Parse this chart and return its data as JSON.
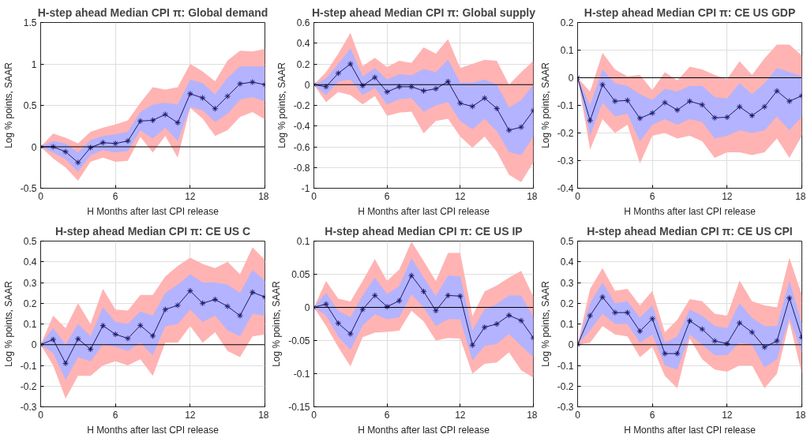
{
  "chart_data": [
    {
      "type": "line",
      "title": "H-step ahead Median CPI π: Global demand",
      "xlabel": "H Months after last CPI release",
      "ylabel": "Log % points, SAAR",
      "x": [
        0,
        1,
        2,
        3,
        4,
        5,
        6,
        7,
        8,
        9,
        10,
        11,
        12,
        13,
        14,
        15,
        16,
        17,
        18
      ],
      "xlim": [
        0,
        18
      ],
      "xticks": [
        0,
        6,
        12,
        18
      ],
      "ylim": [
        -0.5,
        1.5
      ],
      "yticks": [
        -0.5,
        0,
        0.5,
        1,
        1.5
      ],
      "grid": true,
      "marker": "cross",
      "ref_lines": [
        {
          "axis": "y",
          "value": 0,
          "color": "#000000"
        }
      ],
      "series": [
        {
          "color": "#ffb3b3",
          "values": [
            null,
            null,
            null,
            null,
            null,
            null,
            null,
            null,
            null,
            null,
            null,
            null,
            null,
            null,
            null,
            null,
            null,
            null,
            null
          ],
          "lower": [
            0,
            -0.14,
            -0.25,
            -0.41,
            -0.18,
            -0.13,
            -0.18,
            -0.17,
            0.12,
            -0.07,
            0.13,
            -0.13,
            0.47,
            0.34,
            0.13,
            0.2,
            0.36,
            0.42,
            0.33
          ],
          "upper": [
            0,
            0.16,
            0.11,
            0.04,
            0.18,
            0.23,
            0.27,
            0.32,
            0.53,
            0.72,
            0.69,
            0.72,
            1.0,
            0.91,
            0.79,
            1.04,
            1.16,
            1.15,
            1.18
          ]
        },
        {
          "color": "#b3b3ff",
          "values": [
            null,
            null,
            null,
            null,
            null,
            null,
            null,
            null,
            null,
            null,
            null,
            null,
            null,
            null,
            null,
            null,
            null,
            null,
            null
          ],
          "lower": [
            0,
            -0.07,
            -0.15,
            -0.3,
            -0.1,
            -0.04,
            -0.07,
            -0.05,
            0.2,
            0.1,
            0.23,
            0.07,
            0.48,
            0.44,
            0.3,
            0.4,
            0.57,
            0.6,
            0.55
          ],
          "upper": [
            0,
            0.07,
            0.04,
            -0.07,
            0.08,
            0.13,
            0.15,
            0.18,
            0.42,
            0.51,
            0.53,
            0.51,
            0.81,
            0.77,
            0.63,
            0.83,
            0.97,
            0.97,
            0.97
          ]
        },
        {
          "color": "#1a1a66",
          "values": [
            0,
            0,
            -0.06,
            -0.19,
            -0.01,
            0.05,
            0.04,
            0.07,
            0.31,
            0.32,
            0.39,
            0.29,
            0.64,
            0.59,
            0.46,
            0.61,
            0.76,
            0.78,
            0.75
          ]
        }
      ]
    },
    {
      "type": "line",
      "title": "H-step ahead Median CPI π: Global supply",
      "xlabel": "H Months after last CPI release",
      "ylabel": "Log % points, SAAR",
      "x": [
        0,
        1,
        2,
        3,
        4,
        5,
        6,
        7,
        8,
        9,
        10,
        11,
        12,
        13,
        14,
        15,
        16,
        17,
        18
      ],
      "xlim": [
        0,
        18
      ],
      "xticks": [
        0,
        6,
        12,
        18
      ],
      "ylim": [
        -1,
        0.6
      ],
      "yticks": [
        -1,
        -0.8,
        -0.6,
        -0.4,
        -0.2,
        0,
        0.2,
        0.4,
        0.6
      ],
      "grid": true,
      "marker": "cross",
      "ref_lines": [
        {
          "axis": "y",
          "value": 0,
          "color": "#000000"
        }
      ],
      "series": [
        {
          "color": "#ffb3b3",
          "values": [
            null,
            null,
            null,
            null,
            null,
            null,
            null,
            null,
            null,
            null,
            null,
            null,
            null,
            null,
            null,
            null,
            null,
            null,
            null
          ],
          "lower": [
            0,
            -0.17,
            -0.07,
            -0.1,
            -0.19,
            -0.11,
            -0.3,
            -0.27,
            -0.26,
            -0.47,
            -0.35,
            -0.33,
            -0.5,
            -0.61,
            -0.5,
            -0.65,
            -0.87,
            -0.94,
            -0.75
          ],
          "upper": [
            0,
            0.12,
            0.3,
            0.5,
            0.18,
            0.26,
            0.17,
            0.23,
            0.21,
            0.36,
            0.3,
            0.44,
            0.16,
            0.2,
            0.24,
            0.23,
            0.0,
            0.12,
            0.23
          ]
        },
        {
          "color": "#b3b3ff",
          "values": [
            null,
            null,
            null,
            null,
            null,
            null,
            null,
            null,
            null,
            null,
            null,
            null,
            null,
            null,
            null,
            null,
            null,
            null,
            null
          ],
          "lower": [
            0,
            -0.1,
            0.03,
            0.05,
            -0.1,
            -0.03,
            -0.19,
            -0.14,
            -0.13,
            -0.26,
            -0.2,
            -0.17,
            -0.35,
            -0.43,
            -0.33,
            -0.45,
            -0.65,
            -0.68,
            -0.5
          ],
          "upper": [
            0,
            0.06,
            0.2,
            0.35,
            0.08,
            0.16,
            0.05,
            0.1,
            0.09,
            0.15,
            0.12,
            0.24,
            0.02,
            0.02,
            0.05,
            0.0,
            -0.22,
            -0.15,
            0.0
          ]
        },
        {
          "color": "#1a1a66",
          "values": [
            0,
            -0.02,
            0.11,
            0.2,
            -0.01,
            0.07,
            -0.07,
            -0.02,
            -0.02,
            -0.06,
            -0.04,
            0.03,
            -0.18,
            -0.21,
            -0.13,
            -0.23,
            -0.44,
            -0.41,
            -0.25
          ]
        }
      ]
    },
    {
      "type": "line",
      "title": "H-step ahead Median CPI π: CE US GDP",
      "xlabel": "H Months after last CPI release",
      "ylabel": "Log % points, SAAR",
      "x": [
        0,
        1,
        2,
        3,
        4,
        5,
        6,
        7,
        8,
        9,
        10,
        11,
        12,
        13,
        14,
        15,
        16,
        17,
        18
      ],
      "xlim": [
        0,
        18
      ],
      "xticks": [
        0,
        6,
        12,
        18
      ],
      "ylim": [
        -0.4,
        0.2
      ],
      "yticks": [
        -0.4,
        -0.3,
        -0.2,
        -0.1,
        0,
        0.1,
        0.2
      ],
      "grid": true,
      "marker": "cross",
      "ref_lines": [
        {
          "axis": "y",
          "value": 0,
          "color": "#000000"
        }
      ],
      "series": [
        {
          "color": "#ffb3b3",
          "values": [
            null,
            null,
            null,
            null,
            null,
            null,
            null,
            null,
            null,
            null,
            null,
            null,
            null,
            null,
            null,
            null,
            null,
            null,
            null
          ],
          "lower": [
            0,
            -0.26,
            -0.15,
            -0.2,
            -0.17,
            -0.31,
            -0.21,
            -0.2,
            -0.22,
            -0.21,
            -0.23,
            -0.29,
            -0.27,
            -0.27,
            -0.28,
            -0.27,
            -0.22,
            -0.29,
            -0.21
          ],
          "upper": [
            0,
            -0.05,
            0.09,
            0.03,
            0.005,
            0.01,
            -0.045,
            0.02,
            -0.01,
            0.04,
            0.03,
            0.01,
            -0.005,
            0.06,
            0.01,
            0.07,
            0.12,
            0.12,
            0.08
          ]
        },
        {
          "color": "#b3b3ff",
          "values": [
            null,
            null,
            null,
            null,
            null,
            null,
            null,
            null,
            null,
            null,
            null,
            null,
            null,
            null,
            null,
            null,
            null,
            null,
            null
          ],
          "lower": [
            0,
            -0.21,
            -0.09,
            -0.14,
            -0.13,
            -0.23,
            -0.17,
            -0.15,
            -0.17,
            -0.15,
            -0.16,
            -0.22,
            -0.21,
            -0.19,
            -0.2,
            -0.19,
            -0.14,
            -0.19,
            -0.14
          ],
          "upper": [
            0,
            -0.1,
            0.03,
            -0.02,
            -0.03,
            -0.06,
            -0.08,
            -0.04,
            -0.05,
            -0.03,
            -0.03,
            -0.07,
            -0.075,
            -0.02,
            -0.06,
            -0.02,
            0.035,
            0.02,
            0.005
          ]
        },
        {
          "color": "#1a1a66",
          "values": [
            0,
            -0.155,
            -0.025,
            -0.085,
            -0.082,
            -0.147,
            -0.128,
            -0.09,
            -0.117,
            -0.085,
            -0.098,
            -0.145,
            -0.143,
            -0.105,
            -0.137,
            -0.105,
            -0.048,
            -0.085,
            -0.065
          ]
        }
      ]
    },
    {
      "type": "line",
      "title": "H-step ahead Median CPI π: CE US C",
      "xlabel": "H Months after last CPI release",
      "ylabel": "Log % points, SAAR",
      "x": [
        0,
        1,
        2,
        3,
        4,
        5,
        6,
        7,
        8,
        9,
        10,
        11,
        12,
        13,
        14,
        15,
        16,
        17,
        18
      ],
      "xlim": [
        0,
        18
      ],
      "xticks": [
        0,
        6,
        12,
        18
      ],
      "ylim": [
        -0.3,
        0.5
      ],
      "yticks": [
        -0.3,
        -0.2,
        -0.1,
        0,
        0.1,
        0.2,
        0.3,
        0.4,
        0.5
      ],
      "grid": true,
      "marker": "cross",
      "ref_lines": [
        {
          "axis": "y",
          "value": 0,
          "color": "#000000"
        }
      ],
      "series": [
        {
          "color": "#ffb3b3",
          "values": [
            null,
            null,
            null,
            null,
            null,
            null,
            null,
            null,
            null,
            null,
            null,
            null,
            null,
            null,
            null,
            null,
            null,
            null,
            null
          ],
          "lower": [
            0,
            -0.1,
            -0.26,
            -0.15,
            -0.15,
            -0.1,
            -0.08,
            -0.1,
            -0.07,
            -0.15,
            0.01,
            0.01,
            0.09,
            0.01,
            0.06,
            -0.03,
            -0.06,
            0.04,
            0.05
          ],
          "upper": [
            0,
            0.14,
            0.08,
            0.2,
            0.1,
            0.27,
            0.17,
            0.165,
            0.24,
            0.24,
            0.33,
            0.38,
            0.42,
            0.39,
            0.37,
            0.4,
            0.34,
            0.47,
            0.41
          ]
        },
        {
          "color": "#b3b3ff",
          "values": [
            null,
            null,
            null,
            null,
            null,
            null,
            null,
            null,
            null,
            null,
            null,
            null,
            null,
            null,
            null,
            null,
            null,
            null,
            null
          ],
          "lower": [
            0,
            -0.04,
            -0.17,
            -0.06,
            -0.08,
            0.0,
            -0.01,
            -0.03,
            0.01,
            -0.05,
            0.09,
            0.1,
            0.17,
            0.11,
            0.14,
            0.07,
            0.04,
            0.15,
            0.14
          ],
          "upper": [
            0,
            0.08,
            0.0,
            0.1,
            0.04,
            0.18,
            0.11,
            0.1,
            0.16,
            0.14,
            0.25,
            0.29,
            0.34,
            0.3,
            0.3,
            0.29,
            0.25,
            0.36,
            0.31
          ]
        },
        {
          "color": "#1a1a66",
          "values": [
            0,
            0.025,
            -0.09,
            0.028,
            -0.022,
            0.092,
            0.05,
            0.03,
            0.093,
            0.042,
            0.17,
            0.19,
            0.26,
            0.2,
            0.218,
            0.185,
            0.14,
            0.253,
            0.23
          ]
        }
      ]
    },
    {
      "type": "line",
      "title": "H-step ahead Median CPI π: CE US IP",
      "xlabel": "H Months after last CPI release",
      "ylabel": "Log % points, SAAR",
      "x": [
        0,
        1,
        2,
        3,
        4,
        5,
        6,
        7,
        8,
        9,
        10,
        11,
        12,
        13,
        14,
        15,
        16,
        17,
        18
      ],
      "xlim": [
        0,
        18
      ],
      "xticks": [
        0,
        6,
        12,
        18
      ],
      "ylim": [
        -0.15,
        0.1
      ],
      "yticks": [
        -0.15,
        -0.1,
        -0.05,
        0,
        0.05,
        0.1
      ],
      "grid": true,
      "marker": "cross",
      "ref_lines": [
        {
          "axis": "y",
          "value": 0,
          "color": "#000000"
        }
      ],
      "series": [
        {
          "color": "#ffb3b3",
          "values": [
            null,
            null,
            null,
            null,
            null,
            null,
            null,
            null,
            null,
            null,
            null,
            null,
            null,
            null,
            null,
            null,
            null,
            null,
            null
          ],
          "lower": [
            0,
            -0.028,
            -0.06,
            -0.089,
            -0.045,
            -0.038,
            -0.037,
            -0.035,
            -0.005,
            -0.021,
            -0.05,
            -0.046,
            -0.047,
            -0.1,
            -0.085,
            -0.083,
            -0.068,
            -0.095,
            -0.106
          ],
          "upper": [
            0,
            0.04,
            0.013,
            0.009,
            0.04,
            0.073,
            0.04,
            0.057,
            0.099,
            0.07,
            0.04,
            0.082,
            0.082,
            -0.013,
            0.024,
            0.033,
            0.045,
            0.055,
            0.016
          ]
        },
        {
          "color": "#b3b3ff",
          "values": [
            null,
            null,
            null,
            null,
            null,
            null,
            null,
            null,
            null,
            null,
            null,
            null,
            null,
            null,
            null,
            null,
            null,
            null,
            null
          ],
          "lower": [
            0,
            -0.012,
            -0.044,
            -0.064,
            -0.027,
            -0.01,
            -0.018,
            -0.015,
            0.02,
            0.0,
            -0.028,
            -0.018,
            -0.018,
            -0.08,
            -0.058,
            -0.055,
            -0.04,
            -0.058,
            -0.075
          ],
          "upper": [
            0,
            0.022,
            -0.005,
            -0.015,
            0.018,
            0.045,
            0.02,
            0.032,
            0.074,
            0.045,
            0.017,
            0.048,
            0.047,
            -0.035,
            -0.003,
            0.005,
            0.018,
            0.018,
            -0.015
          ]
        },
        {
          "color": "#1a1a66",
          "values": [
            0,
            0.005,
            -0.024,
            -0.04,
            -0.003,
            0.018,
            0.001,
            0.01,
            0.048,
            0.024,
            -0.005,
            0.018,
            0.017,
            -0.057,
            -0.03,
            -0.025,
            -0.012,
            -0.02,
            -0.046
          ]
        }
      ]
    },
    {
      "type": "line",
      "title": "H-step ahead Median CPI π: CE US CPI",
      "xlabel": "H Months after last CPI release",
      "ylabel": "Log % points, SAAR",
      "x": [
        0,
        1,
        2,
        3,
        4,
        5,
        6,
        7,
        8,
        9,
        10,
        11,
        12,
        13,
        14,
        15,
        16,
        17,
        18
      ],
      "xlim": [
        0,
        18
      ],
      "xticks": [
        0,
        6,
        12,
        18
      ],
      "ylim": [
        -0.3,
        0.5
      ],
      "yticks": [
        -0.3,
        -0.2,
        -0.1,
        0,
        0.1,
        0.2,
        0.3,
        0.4,
        0.5
      ],
      "grid": true,
      "marker": "cross",
      "ref_lines": [
        {
          "axis": "y",
          "value": 0,
          "color": "#000000"
        }
      ],
      "series": [
        {
          "color": "#ffb3b3",
          "values": [
            null,
            null,
            null,
            null,
            null,
            null,
            null,
            null,
            null,
            null,
            null,
            null,
            null,
            null,
            null,
            null,
            null,
            null,
            null
          ],
          "lower": [
            0,
            0.01,
            0.09,
            0.05,
            0.04,
            -0.06,
            -0.01,
            -0.15,
            -0.21,
            0.03,
            -0.07,
            -0.12,
            -0.13,
            -0.1,
            -0.1,
            -0.21,
            -0.14,
            0.11,
            -0.14
          ],
          "upper": [
            0,
            0.27,
            0.37,
            0.26,
            0.27,
            0.19,
            0.26,
            0.06,
            0.12,
            0.22,
            0.21,
            0.15,
            0.14,
            0.31,
            0.21,
            0.19,
            0.18,
            0.42,
            0.24
          ]
        },
        {
          "color": "#b3b3ff",
          "values": [
            null,
            null,
            null,
            null,
            null,
            null,
            null,
            null,
            null,
            null,
            null,
            null,
            null,
            null,
            null,
            null,
            null,
            null,
            null
          ],
          "lower": [
            0,
            0.07,
            0.15,
            0.1,
            0.1,
            0.01,
            0.05,
            -0.1,
            -0.12,
            0.05,
            0.0,
            -0.05,
            -0.05,
            0.01,
            0.0,
            -0.11,
            -0.07,
            0.13,
            -0.04
          ],
          "upper": [
            0,
            0.2,
            0.3,
            0.2,
            0.21,
            0.13,
            0.19,
            0.01,
            0.04,
            0.17,
            0.14,
            0.09,
            0.08,
            0.2,
            0.13,
            0.09,
            0.09,
            0.31,
            0.1
          ]
        },
        {
          "color": "#1a1a66",
          "values": [
            0,
            0.14,
            0.23,
            0.155,
            0.155,
            0.065,
            0.125,
            -0.043,
            -0.043,
            0.115,
            0.075,
            0.018,
            0.005,
            0.105,
            0.06,
            -0.012,
            0.018,
            0.225,
            0.035
          ]
        }
      ]
    }
  ]
}
